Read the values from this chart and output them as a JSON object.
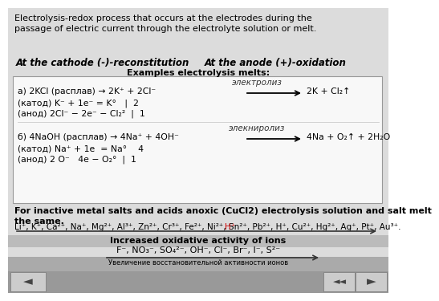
{
  "bg_top_color": "#e8e8e8",
  "bg_bottom_color": "#aaaaaa",
  "box_color": "#f5f5f5",
  "title_text": "Electrolysis-redox process that occurs at the electrodes during the\npassage of electric current through the electrolyte solution or melt.",
  "cathode_text": "At the cathode (-)-reconstitution",
  "anode_text": "At the anode (+)-oxidation",
  "examples_title": "Examples electrolysis melts:",
  "electroliz_label": "электролиз",
  "line_a1": "а) 2KCl (расплав) → 2K⁺ + 2Cl⁻",
  "line_a1_right": "2K + Cl₂↑",
  "line_a2": "(катод) K⁻ + 1e⁻ = K°   |  2",
  "line_a3": "(анод) 2Cl⁻ − 2e⁻ − Cl₂²  |  1",
  "electroliz2_label": "элекниролиз",
  "line_b1": "б) 4NaOH (расплав) → 4Na⁺ + 4OH⁻",
  "line_b1_right": "4Na + O₂↑ + 2H₂O",
  "line_b2": "(катод) Na⁺ + 1e  = Na°    4",
  "line_b3": "(анод) 2 O⁻   4e − O₂°  |  1",
  "inactive_text": "For inactive metal salts and acids anoxic (CuCl2) electrolysis solution and salt melt\nthe same.",
  "ions_prefix": "Li⁺, K⁺, Ca²⁺, Na⁺, Mg²⁺, Al³⁺, Zn²⁺, Cr³⁺, Fe²⁺, Ni²⁺, Sn²⁺, Pb²⁺, ",
  "ions_H": "H⁺",
  "ions_suffix": ", Cu²⁺, Hg²⁺, Ag⁺, Pt⁺, Au³⁺.",
  "oxidative_title": "Increased oxidative activity of ions",
  "oxidative_ions": "F⁻, NO₃⁻, SO₄²⁻, OH⁻, Cl⁻, Br⁻, I⁻, S²⁻",
  "russian_bottom": "Увеличение восстановительной активности ионов",
  "H_color": "#cc0000",
  "nav_bar_color": "#999999",
  "nav_btn_color": "#cccccc"
}
